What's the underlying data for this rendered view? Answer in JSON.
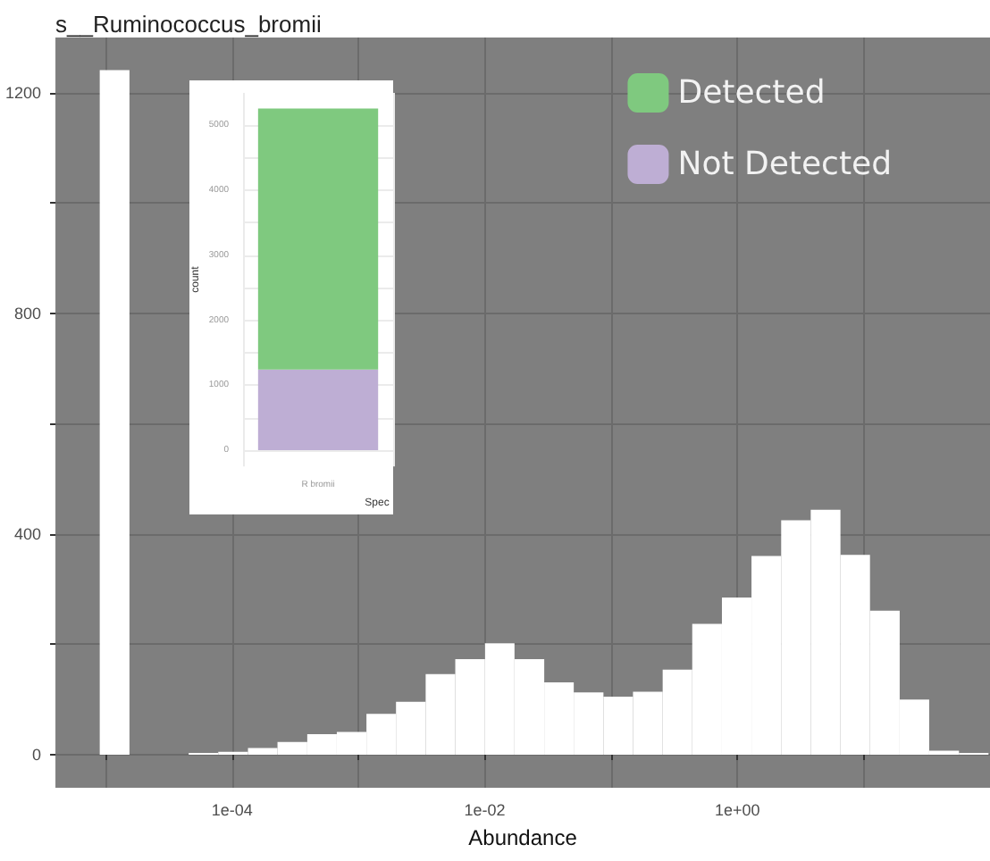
{
  "chart_data": [
    {
      "type": "histogram",
      "title": "s__Ruminococcus_bromii",
      "xlabel": "Abundance",
      "color": "#ffffff",
      "log": "x",
      "grid": true,
      "bins": [
        8.97e-06,
        1.542e-05,
        2.64e-05,
        4.54e-05,
        7.78e-05,
        0.0001337,
        0.000229,
        0.000394,
        0.000675,
        0.001159,
        0.001986,
        0.00341,
        0.00585,
        0.01005,
        0.01722,
        0.0296,
        0.0507,
        0.0871,
        0.1493,
        0.2564,
        0.4395,
        0.755,
        1.294,
        2.223,
        3.81,
        6.55,
        11.22,
        19.28,
        33.0,
        56.8,
        97.3
      ],
      "values": [
        1241,
        0,
        0,
        3,
        5,
        12,
        23,
        37,
        41,
        74,
        96,
        146,
        173,
        202,
        173,
        131,
        113,
        105,
        114,
        154,
        237,
        285,
        360,
        425,
        444,
        362,
        261,
        100,
        7,
        3
      ],
      "xlim": [
        4e-06,
        100
      ],
      "xticks": [
        {
          "value": 1e-05,
          "label": null
        },
        {
          "value": 0.0001,
          "label": "1e-04"
        },
        {
          "value": 0.001,
          "label": null
        },
        {
          "value": 0.01,
          "label": "1e-02"
        },
        {
          "value": 0.1,
          "label": null
        },
        {
          "value": 1,
          "label": "1e+00"
        },
        {
          "value": 10,
          "label": null
        }
      ],
      "ylim": [
        -60,
        1300
      ],
      "yticks": [
        0,
        {
          "value": 200,
          "label": null
        },
        400,
        {
          "value": 600,
          "label": null
        },
        800,
        {
          "value": 1000,
          "label": null
        },
        1200
      ]
    },
    {
      "type": "bar",
      "stacked": true,
      "categories": [
        "R bromii"
      ],
      "xlabel": "Spec",
      "ylabel": "count",
      "grid": true,
      "legend": "top right",
      "series": [
        {
          "name": "Not Detected",
          "color": "#beaed4",
          "values": [
            1240
          ]
        },
        {
          "name": "Detected",
          "color": "#7fc97f",
          "values": [
            4020
          ]
        }
      ],
      "ylim": [
        -250,
        5500
      ],
      "yticks": [
        0,
        {
          "value": 500,
          "label": null
        },
        1000,
        {
          "value": 1500,
          "label": null
        },
        2000,
        {
          "value": 2500,
          "label": null
        },
        3000,
        {
          "value": 3500,
          "label": null
        },
        4000,
        {
          "value": 4500,
          "label": null
        },
        5000
      ]
    }
  ]
}
